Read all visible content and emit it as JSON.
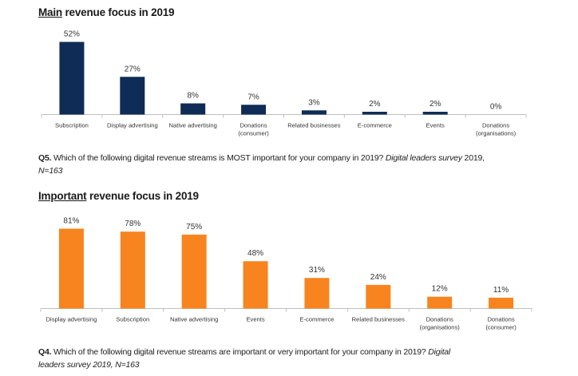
{
  "chart_data": [
    {
      "type": "bar",
      "title_prefix": "Main",
      "title_rest": " revenue focus in 2019",
      "title": "Main revenue focus in 2019",
      "categories": [
        "Subscription",
        "Display advertising",
        "Native advertising",
        "Donations\n(consumer)",
        "Related businesses",
        "E-commerce",
        "Events",
        "Donations\n(organisations)"
      ],
      "values": [
        52,
        27,
        8,
        7,
        3,
        2,
        2,
        0
      ],
      "value_labels": [
        "52%",
        "27%",
        "8%",
        "7%",
        "3%",
        "2%",
        "2%",
        "0%"
      ],
      "xlabel": "",
      "ylabel": "",
      "ylim": [
        0,
        55
      ],
      "grid": false,
      "color": "#0e2c55",
      "caption": {
        "q": "Q5.",
        "text": " Which of the following digital revenue streams is MOST important for your company in 2019? ",
        "italic": "Digital leaders survey",
        "tail": " 2019,",
        "line2": "N=163"
      }
    },
    {
      "type": "bar",
      "title_prefix": "Important",
      "title_rest": " revenue focus in 2019",
      "title": "Important revenue focus in 2019",
      "categories": [
        "Display advertising",
        "Subscription",
        "Native advertising",
        "Events",
        "E-commerce",
        "Related businesses",
        "Donations\n(organisations)",
        "Donations\n(consumer)"
      ],
      "values": [
        81,
        78,
        75,
        48,
        31,
        24,
        12,
        11
      ],
      "value_labels": [
        "81%",
        "78%",
        "75%",
        "48%",
        "31%",
        "24%",
        "12%",
        "11%"
      ],
      "xlabel": "",
      "ylabel": "",
      "ylim": [
        0,
        85
      ],
      "grid": false,
      "color": "#f7841f",
      "caption": {
        "q": "Q4.",
        "text": " Which of the following digital revenue streams are important or very important for your company in 2019? ",
        "italic": "Digital",
        "line2": "leaders survey 2019, N=163"
      }
    }
  ]
}
